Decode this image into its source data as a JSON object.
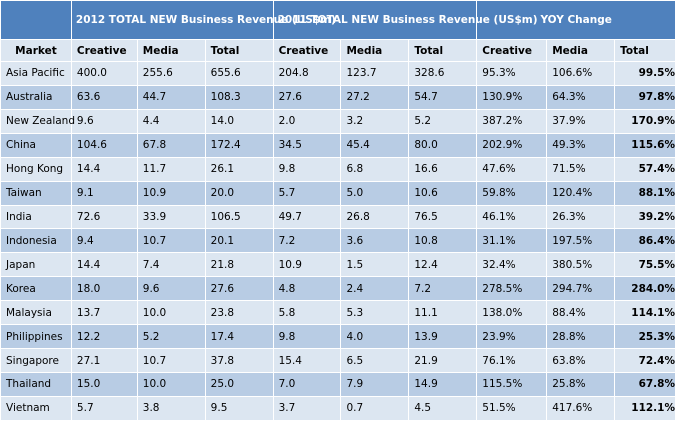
{
  "table": {
    "group_headers": [
      "2012 TOTAL NEW Business Revenue (US$m)",
      "2011 TOTAL NEW Business Revenue (US$m)",
      "YOY Change"
    ],
    "columns": [
      "Market",
      "Creative",
      "Media",
      "Total",
      "Creative",
      "Media",
      "Total",
      "Creative",
      "Media",
      "Total"
    ],
    "rows": [
      [
        "Asia Pacific",
        "400.0",
        "255.6",
        "655.6",
        "204.8",
        "123.7",
        "328.6",
        "95.3%",
        "106.6%",
        "99.5%"
      ],
      [
        "Australia",
        "63.6",
        "44.7",
        "108.3",
        "27.6",
        "27.2",
        "54.7",
        "130.9%",
        "64.3%",
        "97.8%"
      ],
      [
        "New Zealand",
        "9.6",
        "4.4",
        "14.0",
        "2.0",
        "3.2",
        "5.2",
        "387.2%",
        "37.9%",
        "170.9%"
      ],
      [
        "China",
        "104.6",
        "67.8",
        "172.4",
        "34.5",
        "45.4",
        "80.0",
        "202.9%",
        "49.3%",
        "115.6%"
      ],
      [
        "Hong Kong",
        "14.4",
        "11.7",
        "26.1",
        "9.8",
        "6.8",
        "16.6",
        "47.6%",
        "71.5%",
        "57.4%"
      ],
      [
        "Taiwan",
        "9.1",
        "10.9",
        "20.0",
        "5.7",
        "5.0",
        "10.6",
        "59.8%",
        "120.4%",
        "88.1%"
      ],
      [
        "India",
        "72.6",
        "33.9",
        "106.5",
        "49.7",
        "26.8",
        "76.5",
        "46.1%",
        "26.3%",
        "39.2%"
      ],
      [
        "Indonesia",
        "9.4",
        "10.7",
        "20.1",
        "7.2",
        "3.6",
        "10.8",
        "31.1%",
        "197.5%",
        "86.4%"
      ],
      [
        "Japan",
        "14.4",
        "7.4",
        "21.8",
        "10.9",
        "1.5",
        "12.4",
        "32.4%",
        "380.5%",
        "75.5%"
      ],
      [
        "Korea",
        "18.0",
        "9.6",
        "27.6",
        "4.8",
        "2.4",
        "7.2",
        "278.5%",
        "294.7%",
        "284.0%"
      ],
      [
        "Malaysia",
        "13.7",
        "10.0",
        "23.8",
        "5.8",
        "5.3",
        "11.1",
        "138.0%",
        "88.4%",
        "114.1%"
      ],
      [
        "Philippines",
        "12.2",
        "5.2",
        "17.4",
        "9.8",
        "4.0",
        "13.9",
        "23.9%",
        "28.8%",
        "25.3%"
      ],
      [
        "Singapore",
        "27.1",
        "10.7",
        "37.8",
        "15.4",
        "6.5",
        "21.9",
        "76.1%",
        "63.8%",
        "72.4%"
      ],
      [
        "Thailand",
        "15.0",
        "10.0",
        "25.0",
        "7.0",
        "7.9",
        "14.9",
        "115.5%",
        "25.8%",
        "67.8%"
      ],
      [
        "Vietnam",
        "5.7",
        "3.8",
        "9.5",
        "3.7",
        "0.7",
        "4.5",
        "51.5%",
        "417.6%",
        "112.1%"
      ]
    ]
  },
  "colors": {
    "header_blue": "#4f81bd",
    "row_light": "#dce6f1",
    "row_dark": "#b8cce4"
  },
  "chart_data": {
    "type": "table",
    "columns": [
      "Market",
      "2012 Creative",
      "2012 Media",
      "2012 Total",
      "2011 Creative",
      "2011 Media",
      "2011 Total",
      "YOY Creative",
      "YOY Media",
      "YOY Total"
    ],
    "rows": [
      [
        "Asia Pacific",
        400.0,
        255.6,
        655.6,
        204.8,
        123.7,
        328.6,
        "95.3%",
        "106.6%",
        "99.5%"
      ],
      [
        "Australia",
        63.6,
        44.7,
        108.3,
        27.6,
        27.2,
        54.7,
        "130.9%",
        "64.3%",
        "97.8%"
      ],
      [
        "New Zealand",
        9.6,
        4.4,
        14.0,
        2.0,
        3.2,
        5.2,
        "387.2%",
        "37.9%",
        "170.9%"
      ],
      [
        "China",
        104.6,
        67.8,
        172.4,
        34.5,
        45.4,
        80.0,
        "202.9%",
        "49.3%",
        "115.6%"
      ],
      [
        "Hong Kong",
        14.4,
        11.7,
        26.1,
        9.8,
        6.8,
        16.6,
        "47.6%",
        "71.5%",
        "57.4%"
      ],
      [
        "Taiwan",
        9.1,
        10.9,
        20.0,
        5.7,
        5.0,
        10.6,
        "59.8%",
        "120.4%",
        "88.1%"
      ],
      [
        "India",
        72.6,
        33.9,
        106.5,
        49.7,
        26.8,
        76.5,
        "46.1%",
        "26.3%",
        "39.2%"
      ],
      [
        "Indonesia",
        9.4,
        10.7,
        20.1,
        7.2,
        3.6,
        10.8,
        "31.1%",
        "197.5%",
        "86.4%"
      ],
      [
        "Japan",
        14.4,
        7.4,
        21.8,
        10.9,
        1.5,
        12.4,
        "32.4%",
        "380.5%",
        "75.5%"
      ],
      [
        "Korea",
        18.0,
        9.6,
        27.6,
        4.8,
        2.4,
        7.2,
        "278.5%",
        "294.7%",
        "284.0%"
      ],
      [
        "Malaysia",
        13.7,
        10.0,
        23.8,
        5.8,
        5.3,
        11.1,
        "138.0%",
        "88.4%",
        "114.1%"
      ],
      [
        "Philippines",
        12.2,
        5.2,
        17.4,
        9.8,
        4.0,
        13.9,
        "23.9%",
        "28.8%",
        "25.3%"
      ],
      [
        "Singapore",
        27.1,
        10.7,
        37.8,
        15.4,
        6.5,
        21.9,
        "76.1%",
        "63.8%",
        "72.4%"
      ],
      [
        "Thailand",
        15.0,
        10.0,
        25.0,
        7.0,
        7.9,
        14.9,
        "115.5%",
        "25.8%",
        "67.8%"
      ],
      [
        "Vietnam",
        5.7,
        3.8,
        9.5,
        3.7,
        0.7,
        4.5,
        "51.5%",
        "417.6%",
        "112.1%"
      ]
    ]
  }
}
